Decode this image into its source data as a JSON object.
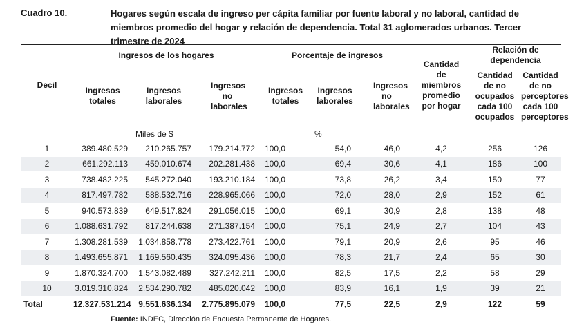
{
  "header": {
    "cuadro": "Cuadro 10.",
    "title": "Hogares según escala de ingreso per cápita familiar por fuente laboral y no laboral, cantidad de miembros promedio del hogar y relación de dependencia. Total 31 aglomerados urbanos. Tercer trimestre de 2024"
  },
  "table": {
    "group_headers": {
      "decil": "Decil",
      "ingresos": "Ingresos de los hogares",
      "porcentaje": "Porcentaje de ingresos",
      "miembros": "Cantidad de miembros promedio por hogar",
      "relacion": "Relación de dependencia"
    },
    "sub_headers": {
      "ing_totales": "Ingresos totales",
      "ing_laborales": "Ingresos laborales",
      "ing_no_laborales": "Ingresos no laborales",
      "pct_totales": "Ingresos totales",
      "pct_laborales": "Ingresos laborales",
      "pct_no_laborales": "Ingresos no laborales",
      "no_ocupados": "Cantidad de no ocupados cada 100 ocupados",
      "no_perceptores": "Cantidad de no perceptores cada 100 perceptores"
    },
    "units": {
      "miles": "Miles de $",
      "pct": "%"
    },
    "rows": [
      [
        "1",
        "389.480.529",
        "210.265.757",
        "179.214.772",
        "100,0",
        "54,0",
        "46,0",
        "4,2",
        "256",
        "126"
      ],
      [
        "2",
        "661.292.113",
        "459.010.674",
        "202.281.438",
        "100,0",
        "69,4",
        "30,6",
        "4,1",
        "186",
        "100"
      ],
      [
        "3",
        "738.482.225",
        "545.272.040",
        "193.210.184",
        "100,0",
        "73,8",
        "26,2",
        "3,4",
        "150",
        "77"
      ],
      [
        "4",
        "817.497.782",
        "588.532.716",
        "228.965.066",
        "100,0",
        "72,0",
        "28,0",
        "2,9",
        "152",
        "61"
      ],
      [
        "5",
        "940.573.839",
        "649.517.824",
        "291.056.015",
        "100,0",
        "69,1",
        "30,9",
        "2,8",
        "138",
        "48"
      ],
      [
        "6",
        "1.088.631.792",
        "817.244.638",
        "271.387.154",
        "100,0",
        "75,1",
        "24,9",
        "2,7",
        "104",
        "43"
      ],
      [
        "7",
        "1.308.281.539",
        "1.034.858.778",
        "273.422.761",
        "100,0",
        "79,1",
        "20,9",
        "2,6",
        "95",
        "46"
      ],
      [
        "8",
        "1.493.655.871",
        "1.169.560.435",
        "324.095.436",
        "100,0",
        "78,3",
        "21,7",
        "2,4",
        "65",
        "30"
      ],
      [
        "9",
        "1.870.324.700",
        "1.543.082.489",
        "327.242.211",
        "100,0",
        "82,5",
        "17,5",
        "2,2",
        "58",
        "29"
      ],
      [
        "10",
        "3.019.310.824",
        "2.534.290.782",
        "485.020.042",
        "100,0",
        "83,9",
        "16,1",
        "1,9",
        "39",
        "21"
      ]
    ],
    "total": [
      "Total",
      "12.327.531.214",
      "9.551.636.134",
      "2.775.895.079",
      "100,0",
      "77,5",
      "22,5",
      "2,9",
      "122",
      "59"
    ]
  },
  "source": {
    "label": "Fuente:",
    "text": " INDEC, Dirección de Encuesta Permanente de Hogares."
  }
}
